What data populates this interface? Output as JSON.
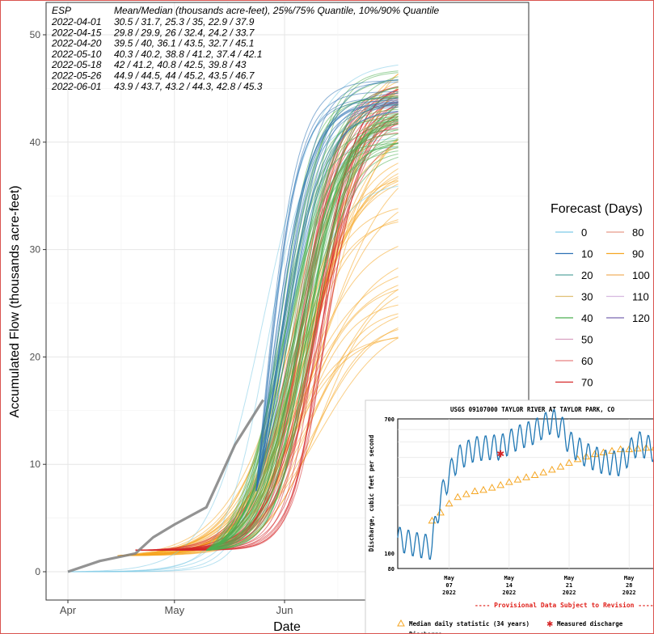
{
  "chart_data": [
    {
      "type": "line",
      "xlabel": "Date",
      "ylabel": "Accumulated Flow (thousands acre-feet)",
      "x_ticks": [
        "Apr",
        "May",
        "Jun"
      ],
      "y_ticks": [
        0,
        10,
        20,
        30,
        40,
        50
      ],
      "ylim": [
        -1,
        52.5
      ],
      "grid": true,
      "legend": {
        "title": "Forecast (Days)",
        "position": "right",
        "entries": [
          {
            "label": "0",
            "color": "#7ecbe6"
          },
          {
            "label": "10",
            "color": "#2d72b5"
          },
          {
            "label": "20",
            "color": "#5aa6a0"
          },
          {
            "label": "30",
            "color": "#e0c074"
          },
          {
            "label": "40",
            "color": "#4caf50"
          },
          {
            "label": "50",
            "color": "#d8a0c0"
          },
          {
            "label": "60",
            "color": "#e88080"
          },
          {
            "label": "70",
            "color": "#d62728"
          },
          {
            "label": "80",
            "color": "#e89a8a"
          },
          {
            "label": "90",
            "color": "#f5a623"
          },
          {
            "label": "100",
            "color": "#f0b060"
          },
          {
            "label": "110",
            "color": "#d7b8e0"
          },
          {
            "label": "120",
            "color": "#7a68b0"
          }
        ]
      },
      "annotation": {
        "header": [
          "ESP",
          "Mean/Median (thousands acre-feet), 25%/75% Quantile, 10%/90% Quantile"
        ],
        "rows": [
          [
            "2022-04-01",
            "30.5 / 31.7,   25.3 / 35,   22.9 / 37.9"
          ],
          [
            "2022-04-15",
            "29.8 / 29.9,   26 / 32.4,   24.2 / 33.7"
          ],
          [
            "2022-04-20",
            "39.5 / 40,   36.1 / 43.5,   32.7 / 45.1"
          ],
          [
            "2022-05-10",
            "40.3 / 40.2,   38.8 / 41.2,   37.4 / 42.1"
          ],
          [
            "2022-05-18",
            "42 / 41.2,   40.8 / 42.5,   39.8 / 43"
          ],
          [
            "2022-05-26",
            "44.9 / 44.5,   44 / 45.2,   43.5 / 46.7"
          ],
          [
            "2022-06-01",
            "43.9 / 43.7,   43.2 / 44.3,   42.8 / 45.3"
          ]
        ]
      },
      "series": [
        {
          "name": "",
          "color": "#808080",
          "x": [
            "2022-04-01",
            "2022-04-10",
            "2022-04-20",
            "2022-04-25",
            "2022-05-01",
            "2022-05-10",
            "2022-05-18",
            "2022-05-26"
          ],
          "y": [
            0,
            1.0,
            1.7,
            3.2,
            4.4,
            6.0,
            11.8,
            16.0
          ]
        }
      ],
      "ensemble_groups": [
        {
          "forecast": "0",
          "color": "#7ecbe6",
          "start": "2022-04-01",
          "start_y": 0,
          "count": 6,
          "final_range": [
            36,
            49
          ],
          "mid": "2022-05-29",
          "steep": 5
        },
        {
          "forecast": "10",
          "color": "#2d72b5",
          "start": "2022-05-24",
          "start_y": 7.5,
          "count": 18,
          "final_range": [
            43,
            46
          ],
          "mid": "2022-05-29",
          "steep": 4
        },
        {
          "forecast": "40",
          "color": "#4caf50",
          "start": "2022-05-10",
          "start_y": 2.0,
          "count": 45,
          "final_range": [
            39,
            47
          ],
          "mid": "2022-06-04",
          "steep": 4.5
        },
        {
          "forecast": "70",
          "color": "#d62728",
          "start": "2022-04-20",
          "start_y": 2.0,
          "count": 30,
          "final_range": [
            41,
            46
          ],
          "mid": "2022-06-09",
          "steep": 4
        },
        {
          "forecast": "90",
          "color": "#f5a623",
          "start": "2022-04-15",
          "start_y": 1.5,
          "count": 40,
          "final_range": [
            21,
            50
          ],
          "mid": "2022-06-07",
          "steep": 7
        }
      ]
    },
    {
      "type": "line",
      "title": "USGS 09107000 TAYLOR RIVER AT TAYLOR PARK, CO",
      "ylabel": "Discharge, cubic feet per second",
      "x_ticks": [
        "May\n07\n2022",
        "May\n14\n2022",
        "May\n21\n2022",
        "May\n28\n2022"
      ],
      "y_ticks": [
        80,
        100,
        700
      ],
      "ylim": [
        80,
        700
      ],
      "note": "---- Provisional Data Subject to Revision ----",
      "legend": [
        {
          "symbol": "triangle",
          "label": "Median daily statistic (34 years)",
          "color": "#f5a623"
        },
        {
          "symbol": "star",
          "label": "Measured discharge",
          "color": "#d62728"
        },
        {
          "symbol": "line",
          "label": "Discharge",
          "color": "#1f77b4"
        }
      ],
      "series": [
        {
          "name": "Discharge",
          "x": [
            "2022-05-01",
            "2022-05-03",
            "2022-05-05",
            "2022-05-06",
            "2022-05-08",
            "2022-05-10",
            "2022-05-12",
            "2022-05-13",
            "2022-05-15",
            "2022-05-17",
            "2022-05-19",
            "2022-05-20",
            "2022-05-21",
            "2022-05-23",
            "2022-05-25",
            "2022-05-27",
            "2022-05-29",
            "2022-05-31"
          ],
          "y": [
            125,
            115,
            110,
            220,
            400,
            460,
            470,
            470,
            540,
            590,
            690,
            640,
            500,
            420,
            380,
            370,
            500,
            450
          ]
        },
        {
          "name": "Median daily statistic (34 years)",
          "x": [
            "2022-05-05",
            "2022-05-06",
            "2022-05-07",
            "2022-05-08",
            "2022-05-09",
            "2022-05-10",
            "2022-05-11",
            "2022-05-12",
            "2022-05-13",
            "2022-05-14",
            "2022-05-15",
            "2022-05-16",
            "2022-05-17",
            "2022-05-18",
            "2022-05-19",
            "2022-05-20",
            "2022-05-21",
            "2022-05-22",
            "2022-05-23",
            "2022-05-24",
            "2022-05-25",
            "2022-05-26",
            "2022-05-27",
            "2022-05-28",
            "2022-05-29",
            "2022-05-30",
            "2022-05-31"
          ],
          "y": [
            160,
            180,
            205,
            225,
            235,
            245,
            250,
            258,
            268,
            280,
            290,
            300,
            310,
            322,
            335,
            350,
            370,
            390,
            405,
            420,
            430,
            440,
            450,
            450,
            455,
            460,
            462
          ]
        },
        {
          "name": "Measured discharge",
          "x": [
            "2022-05-13"
          ],
          "y": [
            420
          ]
        }
      ]
    }
  ]
}
